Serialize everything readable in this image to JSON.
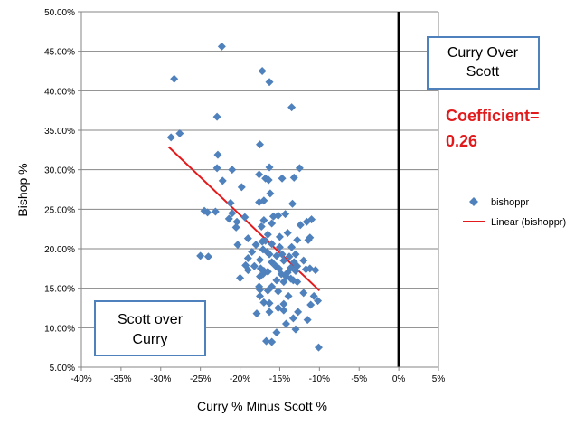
{
  "chart_data": {
    "type": "scatter",
    "xlabel": "Curry % Minus Scott %",
    "ylabel": "Bishop %",
    "xlim": [
      -0.4,
      0.05
    ],
    "ylim": [
      0.05,
      0.5
    ],
    "x_ticks": [
      "-40%",
      "-35%",
      "-30%",
      "-25%",
      "-20%",
      "-15%",
      "-10%",
      "-5%",
      "0%",
      "5%"
    ],
    "y_ticks": [
      "5.00%",
      "10.00%",
      "15.00%",
      "20.00%",
      "25.00%",
      "30.00%",
      "35.00%",
      "40.00%",
      "45.00%",
      "50.00%"
    ],
    "grid": "horizontal",
    "legend_position": "right",
    "vertical_line_x": 0,
    "series": [
      {
        "name": "bishoppr",
        "marker": "diamond",
        "color": "#4F81BD",
        "points": [
          [
            -0.223,
            0.456
          ],
          [
            -0.283,
            0.415
          ],
          [
            -0.172,
            0.425
          ],
          [
            -0.163,
            0.411
          ],
          [
            -0.135,
            0.379
          ],
          [
            -0.229,
            0.367
          ],
          [
            -0.276,
            0.346
          ],
          [
            -0.287,
            0.341
          ],
          [
            -0.175,
            0.332
          ],
          [
            -0.228,
            0.319
          ],
          [
            -0.163,
            0.303
          ],
          [
            -0.229,
            0.302
          ],
          [
            -0.21,
            0.3
          ],
          [
            -0.125,
            0.302
          ],
          [
            -0.176,
            0.294
          ],
          [
            -0.168,
            0.289
          ],
          [
            -0.147,
            0.289
          ],
          [
            -0.164,
            0.287
          ],
          [
            -0.132,
            0.29
          ],
          [
            -0.222,
            0.286
          ],
          [
            -0.198,
            0.278
          ],
          [
            -0.162,
            0.27
          ],
          [
            -0.176,
            0.259
          ],
          [
            -0.17,
            0.261
          ],
          [
            -0.134,
            0.257
          ],
          [
            -0.212,
            0.258
          ],
          [
            -0.245,
            0.248
          ],
          [
            -0.241,
            0.246
          ],
          [
            -0.231,
            0.247
          ],
          [
            -0.21,
            0.245
          ],
          [
            -0.152,
            0.242
          ],
          [
            -0.158,
            0.241
          ],
          [
            -0.143,
            0.244
          ],
          [
            -0.214,
            0.238
          ],
          [
            -0.204,
            0.234
          ],
          [
            -0.194,
            0.24
          ],
          [
            -0.17,
            0.236
          ],
          [
            -0.11,
            0.237
          ],
          [
            -0.116,
            0.234
          ],
          [
            -0.173,
            0.228
          ],
          [
            -0.205,
            0.227
          ],
          [
            -0.124,
            0.23
          ],
          [
            -0.16,
            0.232
          ],
          [
            -0.19,
            0.213
          ],
          [
            -0.172,
            0.209
          ],
          [
            -0.168,
            0.21
          ],
          [
            -0.165,
            0.218
          ],
          [
            -0.15,
            0.215
          ],
          [
            -0.14,
            0.22
          ],
          [
            -0.128,
            0.211
          ],
          [
            -0.112,
            0.214
          ],
          [
            -0.114,
            0.211
          ],
          [
            -0.203,
            0.205
          ],
          [
            -0.18,
            0.205
          ],
          [
            -0.16,
            0.206
          ],
          [
            -0.15,
            0.202
          ],
          [
            -0.135,
            0.202
          ],
          [
            -0.171,
            0.199
          ],
          [
            -0.166,
            0.196
          ],
          [
            -0.185,
            0.196
          ],
          [
            -0.163,
            0.193
          ],
          [
            -0.147,
            0.193
          ],
          [
            -0.154,
            0.191
          ],
          [
            -0.138,
            0.19
          ],
          [
            -0.13,
            0.193
          ],
          [
            -0.25,
            0.191
          ],
          [
            -0.24,
            0.19
          ],
          [
            -0.19,
            0.188
          ],
          [
            -0.175,
            0.186
          ],
          [
            -0.16,
            0.183
          ],
          [
            -0.145,
            0.185
          ],
          [
            -0.132,
            0.183
          ],
          [
            -0.12,
            0.185
          ],
          [
            -0.193,
            0.179
          ],
          [
            -0.182,
            0.178
          ],
          [
            -0.174,
            0.175
          ],
          [
            -0.17,
            0.172
          ],
          [
            -0.175,
            0.165
          ],
          [
            -0.171,
            0.168
          ],
          [
            -0.155,
            0.178
          ],
          [
            -0.151,
            0.175
          ],
          [
            -0.136,
            0.176
          ],
          [
            -0.14,
            0.17
          ],
          [
            -0.128,
            0.178
          ],
          [
            -0.13,
            0.172
          ],
          [
            -0.117,
            0.174
          ],
          [
            -0.112,
            0.175
          ],
          [
            -0.105,
            0.173
          ],
          [
            -0.19,
            0.173
          ],
          [
            -0.165,
            0.171
          ],
          [
            -0.148,
            0.168
          ],
          [
            -0.142,
            0.165
          ],
          [
            -0.136,
            0.162
          ],
          [
            -0.133,
            0.16
          ],
          [
            -0.128,
            0.158
          ],
          [
            -0.2,
            0.163
          ],
          [
            -0.154,
            0.16
          ],
          [
            -0.145,
            0.158
          ],
          [
            -0.16,
            0.152
          ],
          [
            -0.176,
            0.152
          ],
          [
            -0.175,
            0.148
          ],
          [
            -0.165,
            0.147
          ],
          [
            -0.152,
            0.146
          ],
          [
            -0.139,
            0.14
          ],
          [
            -0.12,
            0.144
          ],
          [
            -0.107,
            0.14
          ],
          [
            -0.175,
            0.14
          ],
          [
            -0.17,
            0.132
          ],
          [
            -0.163,
            0.131
          ],
          [
            -0.145,
            0.13
          ],
          [
            -0.111,
            0.129
          ],
          [
            -0.102,
            0.134
          ],
          [
            -0.179,
            0.118
          ],
          [
            -0.163,
            0.12
          ],
          [
            -0.145,
            0.122
          ],
          [
            -0.152,
            0.125
          ],
          [
            -0.127,
            0.12
          ],
          [
            -0.115,
            0.11
          ],
          [
            -0.133,
            0.112
          ],
          [
            -0.142,
            0.105
          ],
          [
            -0.13,
            0.098
          ],
          [
            -0.154,
            0.094
          ],
          [
            -0.16,
            0.082
          ],
          [
            -0.167,
            0.083
          ],
          [
            -0.101,
            0.075
          ]
        ]
      },
      {
        "name": "Linear (bishoppr)",
        "type": "line",
        "color": "#E31A1C",
        "points": [
          [
            -0.29,
            0.329
          ],
          [
            -0.1,
            0.147
          ]
        ]
      }
    ],
    "annotations": [
      {
        "lines": [
          "Curry Over",
          "Scott"
        ]
      },
      {
        "lines": [
          "Scott over",
          "Curry"
        ]
      },
      {
        "lines": [
          "Coefficient=",
          "0.26"
        ],
        "color": "#E31A1C"
      }
    ]
  }
}
